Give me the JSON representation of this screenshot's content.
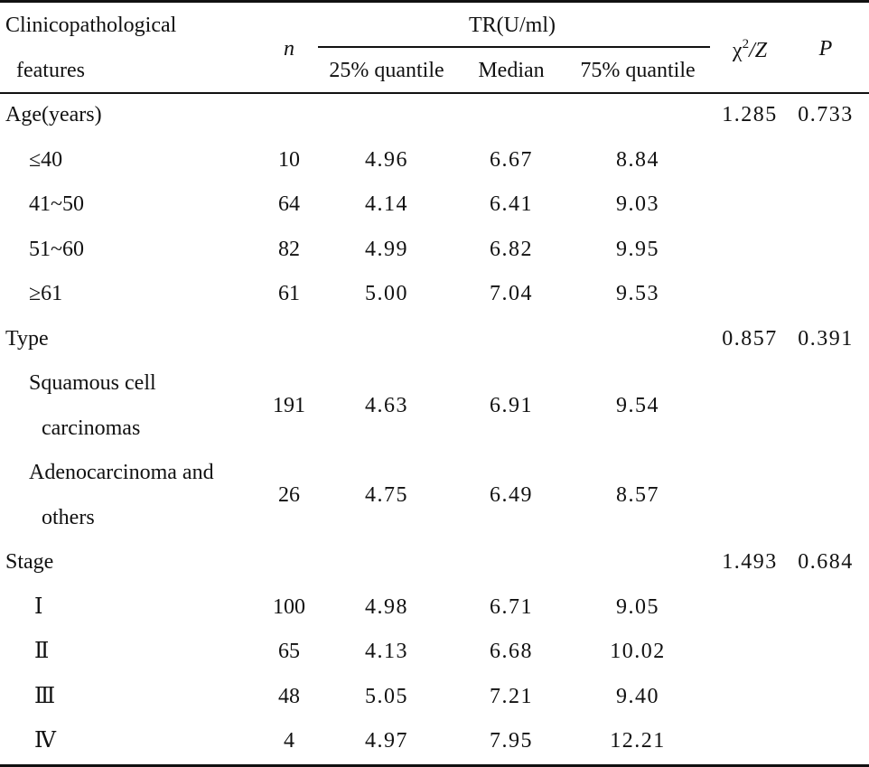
{
  "header": {
    "features_line1": "Clinicopathological",
    "features_line2": "features",
    "n": "n",
    "tr": "TR(U/ml)",
    "q25": "25% quantile",
    "median": "Median",
    "q75": "75% quantile",
    "chi_base": "χ",
    "chi_sup": "2",
    "chi_tail": "/Z",
    "p": "P"
  },
  "groups": [
    {
      "label": "Age(years)",
      "chi": "1.285",
      "p": "0.733",
      "rows": [
        {
          "label": [
            "≤40"
          ],
          "n": "10",
          "q25": "4.96",
          "median": "6.67",
          "q75": "8.84"
        },
        {
          "label": [
            "41~50"
          ],
          "n": "64",
          "q25": "4.14",
          "median": "6.41",
          "q75": "9.03"
        },
        {
          "label": [
            "51~60"
          ],
          "n": "82",
          "q25": "4.99",
          "median": "6.82",
          "q75": "9.95"
        },
        {
          "label": [
            "≥61"
          ],
          "n": "61",
          "q25": "5.00",
          "median": "7.04",
          "q75": "9.53"
        }
      ]
    },
    {
      "label": "Type",
      "chi": "0.857",
      "p": "0.391",
      "rows": [
        {
          "label": [
            "Squamous cell",
            "carcinomas"
          ],
          "n": "191",
          "q25": "4.63",
          "median": "6.91",
          "q75": "9.54"
        },
        {
          "label": [
            "Adenocarcinoma and",
            "others"
          ],
          "n": "26",
          "q25": "4.75",
          "median": "6.49",
          "q75": "8.57"
        }
      ]
    },
    {
      "label": "Stage",
      "chi": "1.493",
      "p": "0.684",
      "rows": [
        {
          "label": [
            "Ⅰ"
          ],
          "n": "100",
          "q25": "4.98",
          "median": "6.71",
          "q75": "9.05"
        },
        {
          "label": [
            "Ⅱ"
          ],
          "n": "65",
          "q25": "4.13",
          "median": "6.68",
          "q75": "10.02"
        },
        {
          "label": [
            "Ⅲ"
          ],
          "n": "48",
          "q25": "5.05",
          "median": "7.21",
          "q75": "9.40"
        },
        {
          "label": [
            "Ⅳ"
          ],
          "n": "4",
          "q25": "4.97",
          "median": "7.95",
          "q75": "12.21"
        }
      ]
    }
  ]
}
